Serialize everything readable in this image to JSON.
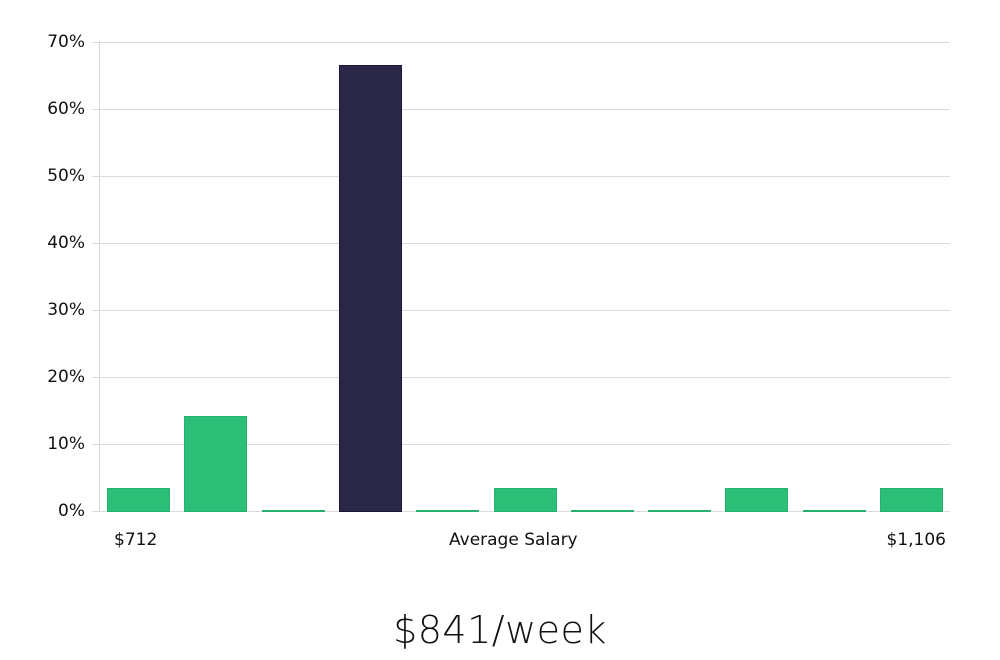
{
  "chart_data": {
    "type": "bar",
    "title": "",
    "xlabel": "Average Salary",
    "ylabel": "",
    "ylim": [
      0,
      70
    ],
    "yticks": [
      "0%",
      "10%",
      "20%",
      "30%",
      "40%",
      "50%",
      "60%",
      "70%"
    ],
    "x_range_labels": {
      "min": "$712",
      "max": "$1,106"
    },
    "categories": [
      "bin1",
      "bin2",
      "bin3",
      "bin4",
      "bin5",
      "bin6",
      "bin7",
      "bin8",
      "bin9",
      "bin10",
      "bin11"
    ],
    "values": [
      3.6,
      14.3,
      0,
      66.7,
      0,
      3.6,
      0,
      0,
      3.6,
      0,
      3.6
    ],
    "highlight_index": 3,
    "colors": {
      "default": "#2bbf78",
      "highlight": "#2a2747",
      "grid": "#dcdcdc"
    },
    "grid": true,
    "legend": null
  },
  "labels": {
    "x_min": "$712",
    "x_center": "Average Salary",
    "x_max": "$1,106",
    "headline": "$841/week"
  }
}
